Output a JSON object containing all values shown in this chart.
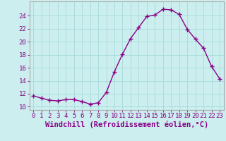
{
  "x": [
    0,
    1,
    2,
    3,
    4,
    5,
    6,
    7,
    8,
    9,
    10,
    11,
    12,
    13,
    14,
    15,
    16,
    17,
    18,
    19,
    20,
    21,
    22,
    23
  ],
  "y": [
    11.7,
    11.3,
    11.0,
    10.9,
    11.1,
    11.1,
    10.8,
    10.4,
    10.6,
    12.2,
    15.4,
    18.1,
    20.5,
    22.2,
    23.9,
    24.1,
    25.0,
    24.9,
    24.2,
    21.9,
    20.4,
    19.0,
    16.2,
    14.3
  ],
  "line_color": "#880088",
  "marker": "+",
  "markersize": 4,
  "markeredgewidth": 1.0,
  "linewidth": 1.0,
  "background_color": "#cceeee",
  "grid_color": "#aadddd",
  "xlabel": "Windchill (Refroidissement éolien,°C)",
  "xlim": [
    -0.5,
    23.5
  ],
  "ylim": [
    9.5,
    26.2
  ],
  "yticks": [
    10,
    12,
    14,
    16,
    18,
    20,
    22,
    24
  ],
  "xticks": [
    0,
    1,
    2,
    3,
    4,
    5,
    6,
    7,
    8,
    9,
    10,
    11,
    12,
    13,
    14,
    15,
    16,
    17,
    18,
    19,
    20,
    21,
    22,
    23
  ],
  "tick_fontsize": 6.5,
  "label_fontsize": 7.5,
  "spine_color": "#aaaaaa"
}
